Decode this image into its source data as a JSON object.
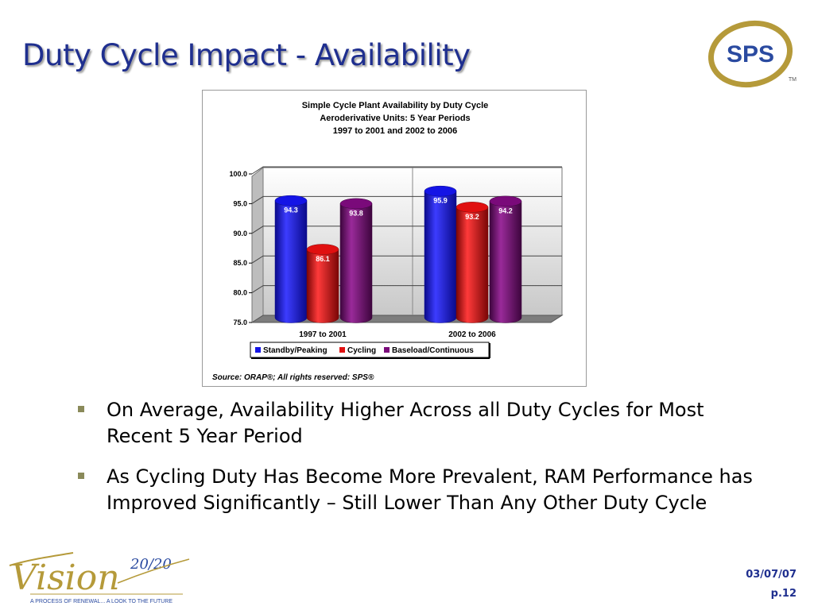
{
  "slide": {
    "title": "Duty Cycle Impact - Availability",
    "bullets": [
      "On Average, Availability Higher Across all Duty Cycles for Most Recent 5 Year Period",
      "As Cycling Duty Has Become More Prevalent, RAM Performance has Improved Significantly – Still Lower Than Any Other Duty Cycle"
    ],
    "date": "03/07/07",
    "page": "p.12",
    "logos": {
      "sps": {
        "text": "SPS",
        "tm": "TM"
      },
      "vision": {
        "text": "Vision",
        "year": "20/20",
        "tagline": "A PROCESS OF RENEWAL... A LOOK TO THE FUTURE"
      }
    }
  },
  "colors": {
    "title": "#1f2f8f",
    "standby": "#1414e6",
    "cycling": "#e01010",
    "baseload": "#7a0a7a",
    "gold": "#b59a3a",
    "sps_blue": "#2a4aa0"
  },
  "chart_data": {
    "type": "bar",
    "title": [
      "Simple Cycle Plant Availability by Duty Cycle",
      "Aeroderivative Units: 5 Year Periods",
      "1997 to 2001 and 2002 to 2006"
    ],
    "categories": [
      "1997 to 2001",
      "2002 to 2006"
    ],
    "series": [
      {
        "name": "Standby/Peaking",
        "color": "#1414e6",
        "values": [
          94.3,
          95.9
        ]
      },
      {
        "name": "Cycling",
        "color": "#e01010",
        "values": [
          86.1,
          93.2
        ]
      },
      {
        "name": "Baseload/Continuous",
        "color": "#7a0a7a",
        "values": [
          93.8,
          94.2
        ]
      }
    ],
    "value_labels": [
      [
        "94.3",
        "95.9"
      ],
      [
        "86.1",
        "93.2"
      ],
      [
        "93.8",
        "94.2"
      ]
    ],
    "yticks": [
      "100.0",
      "95.0",
      "90.0",
      "85.0",
      "80.0",
      "75.0"
    ],
    "ylim": [
      75,
      100
    ],
    "xlabel": "",
    "ylabel": "",
    "legend": "bottom",
    "grid": true,
    "source": "Source: ORAP®; All rights reserved: SPS®"
  }
}
